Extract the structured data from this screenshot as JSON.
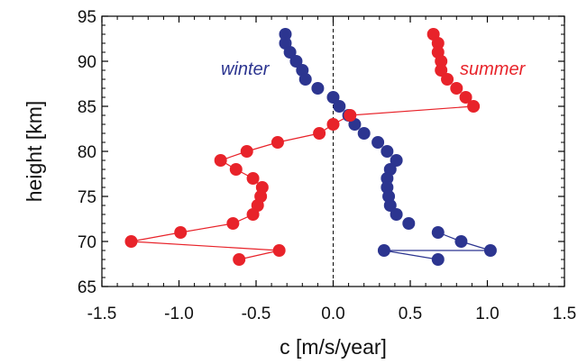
{
  "chart_data": {
    "type": "scatter",
    "title": "",
    "xlabel": "c [m/s/year]",
    "ylabel": "height [km]",
    "xlim": [
      -1.5,
      1.5
    ],
    "ylim": [
      65,
      95
    ],
    "xticks": [
      -1.5,
      -1.0,
      -0.5,
      0.0,
      0.5,
      1.0,
      1.5
    ],
    "xtick_labels": [
      "-1.5",
      "-1.0",
      "-0.5",
      "0.0",
      "0.5",
      "1.0",
      "1.5"
    ],
    "yticks": [
      65,
      70,
      75,
      80,
      85,
      90,
      95
    ],
    "ytick_labels": [
      "65",
      "70",
      "75",
      "80",
      "85",
      "90",
      "95"
    ],
    "zero_line": {
      "x": 0,
      "style": "dashed"
    },
    "grid": false,
    "series": [
      {
        "name": "winter",
        "color": "#2c3590",
        "points": [
          [
            -0.31,
            93
          ],
          [
            -0.31,
            92
          ],
          [
            -0.28,
            91
          ],
          [
            -0.24,
            90
          ],
          [
            -0.2,
            89
          ],
          [
            -0.18,
            88
          ],
          [
            -0.1,
            87
          ],
          [
            0.0,
            86
          ],
          [
            0.04,
            85
          ],
          [
            0.1,
            84
          ],
          [
            0.14,
            83
          ],
          [
            0.2,
            82
          ],
          [
            0.29,
            81
          ],
          [
            0.35,
            80
          ],
          [
            0.41,
            79
          ],
          [
            0.37,
            78
          ],
          [
            0.35,
            77
          ],
          [
            0.35,
            76
          ],
          [
            0.36,
            75
          ],
          [
            0.37,
            74
          ],
          [
            0.41,
            73
          ],
          [
            0.49,
            72
          ],
          [
            0.68,
            71
          ],
          [
            0.83,
            70
          ],
          [
            1.02,
            69
          ],
          [
            0.33,
            69
          ],
          [
            0.68,
            68
          ]
        ],
        "connect_from_index": 22
      },
      {
        "name": "summer",
        "color": "#e8232a",
        "points": [
          [
            0.65,
            93
          ],
          [
            0.68,
            92
          ],
          [
            0.68,
            91
          ],
          [
            0.7,
            90
          ],
          [
            0.7,
            89
          ],
          [
            0.74,
            88
          ],
          [
            0.8,
            87
          ],
          [
            0.86,
            86
          ],
          [
            0.91,
            85
          ],
          [
            0.11,
            84
          ],
          [
            0.0,
            83
          ],
          [
            -0.09,
            82
          ],
          [
            -0.36,
            81
          ],
          [
            -0.56,
            80
          ],
          [
            -0.73,
            79
          ],
          [
            -0.63,
            78
          ],
          [
            -0.52,
            77
          ],
          [
            -0.46,
            76
          ],
          [
            -0.47,
            75
          ],
          [
            -0.49,
            74
          ],
          [
            -0.52,
            73
          ],
          [
            -0.65,
            72
          ],
          [
            -0.99,
            71
          ],
          [
            -1.31,
            70
          ],
          [
            -0.35,
            69
          ],
          [
            -0.61,
            68
          ]
        ],
        "connect_from_index": 7
      }
    ]
  }
}
